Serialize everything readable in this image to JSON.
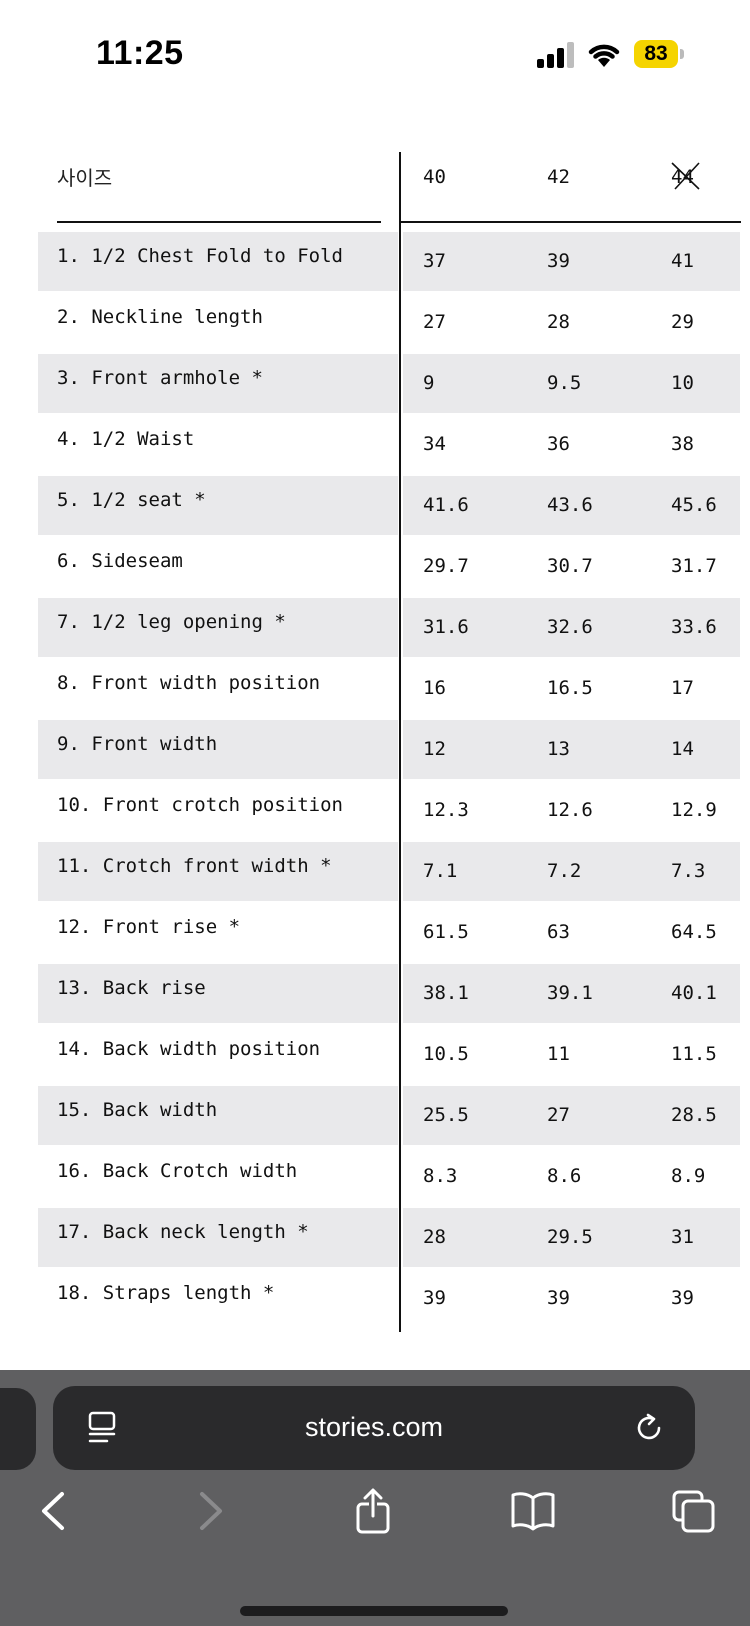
{
  "status_bar": {
    "time": "11:25",
    "battery_level": "83",
    "battery_color": "#f5d400",
    "icons": [
      "cellular-signal-icon",
      "wifi-icon",
      "battery-icon"
    ]
  },
  "table": {
    "header_label": "사이즈",
    "sizes": [
      "40",
      "42",
      "44"
    ],
    "crossed_out_size": "44",
    "rows": [
      {
        "label": "1. 1/2 Chest Fold to Fold",
        "values": [
          "37",
          "39",
          "41"
        ]
      },
      {
        "label": "2. Neckline length",
        "values": [
          "27",
          "28",
          "29"
        ]
      },
      {
        "label": "3. Front armhole *",
        "values": [
          "9",
          "9.5",
          "10"
        ]
      },
      {
        "label": "4. 1/2 Waist",
        "values": [
          "34",
          "36",
          "38"
        ]
      },
      {
        "label": "5. 1/2 seat *",
        "values": [
          "41.6",
          "43.6",
          "45.6"
        ]
      },
      {
        "label": "6. Sideseam",
        "values": [
          "29.7",
          "30.7",
          "31.7"
        ]
      },
      {
        "label": "7. 1/2 leg opening *",
        "values": [
          "31.6",
          "32.6",
          "33.6"
        ]
      },
      {
        "label": "8. Front width position",
        "values": [
          "16",
          "16.5",
          "17"
        ]
      },
      {
        "label": "9. Front width",
        "values": [
          "12",
          "13",
          "14"
        ]
      },
      {
        "label": "10. Front crotch position",
        "values": [
          "12.3",
          "12.6",
          "12.9"
        ]
      },
      {
        "label": "11. Crotch front width *",
        "values": [
          "7.1",
          "7.2",
          "7.3"
        ]
      },
      {
        "label": "12. Front rise *",
        "values": [
          "61.5",
          "63",
          "64.5"
        ]
      },
      {
        "label": "13. Back rise",
        "values": [
          "38.1",
          "39.1",
          "40.1"
        ]
      },
      {
        "label": "14. Back width position",
        "values": [
          "10.5",
          "11",
          "11.5"
        ]
      },
      {
        "label": "15. Back width",
        "values": [
          "25.5",
          "27",
          "28.5"
        ]
      },
      {
        "label": "16. Back Crotch width",
        "values": [
          "8.3",
          "8.6",
          "8.9"
        ]
      },
      {
        "label": "17. Back neck length *",
        "values": [
          "28",
          "29.5",
          "31"
        ]
      },
      {
        "label": "18. Straps length *",
        "values": [
          "39",
          "39",
          "39"
        ]
      }
    ],
    "shaded_row_color": "#e9e9eb"
  },
  "browser": {
    "url": "stories.com",
    "toolbar": [
      "back-icon",
      "forward-icon",
      "share-icon",
      "bookmarks-icon",
      "tabs-icon"
    ]
  }
}
